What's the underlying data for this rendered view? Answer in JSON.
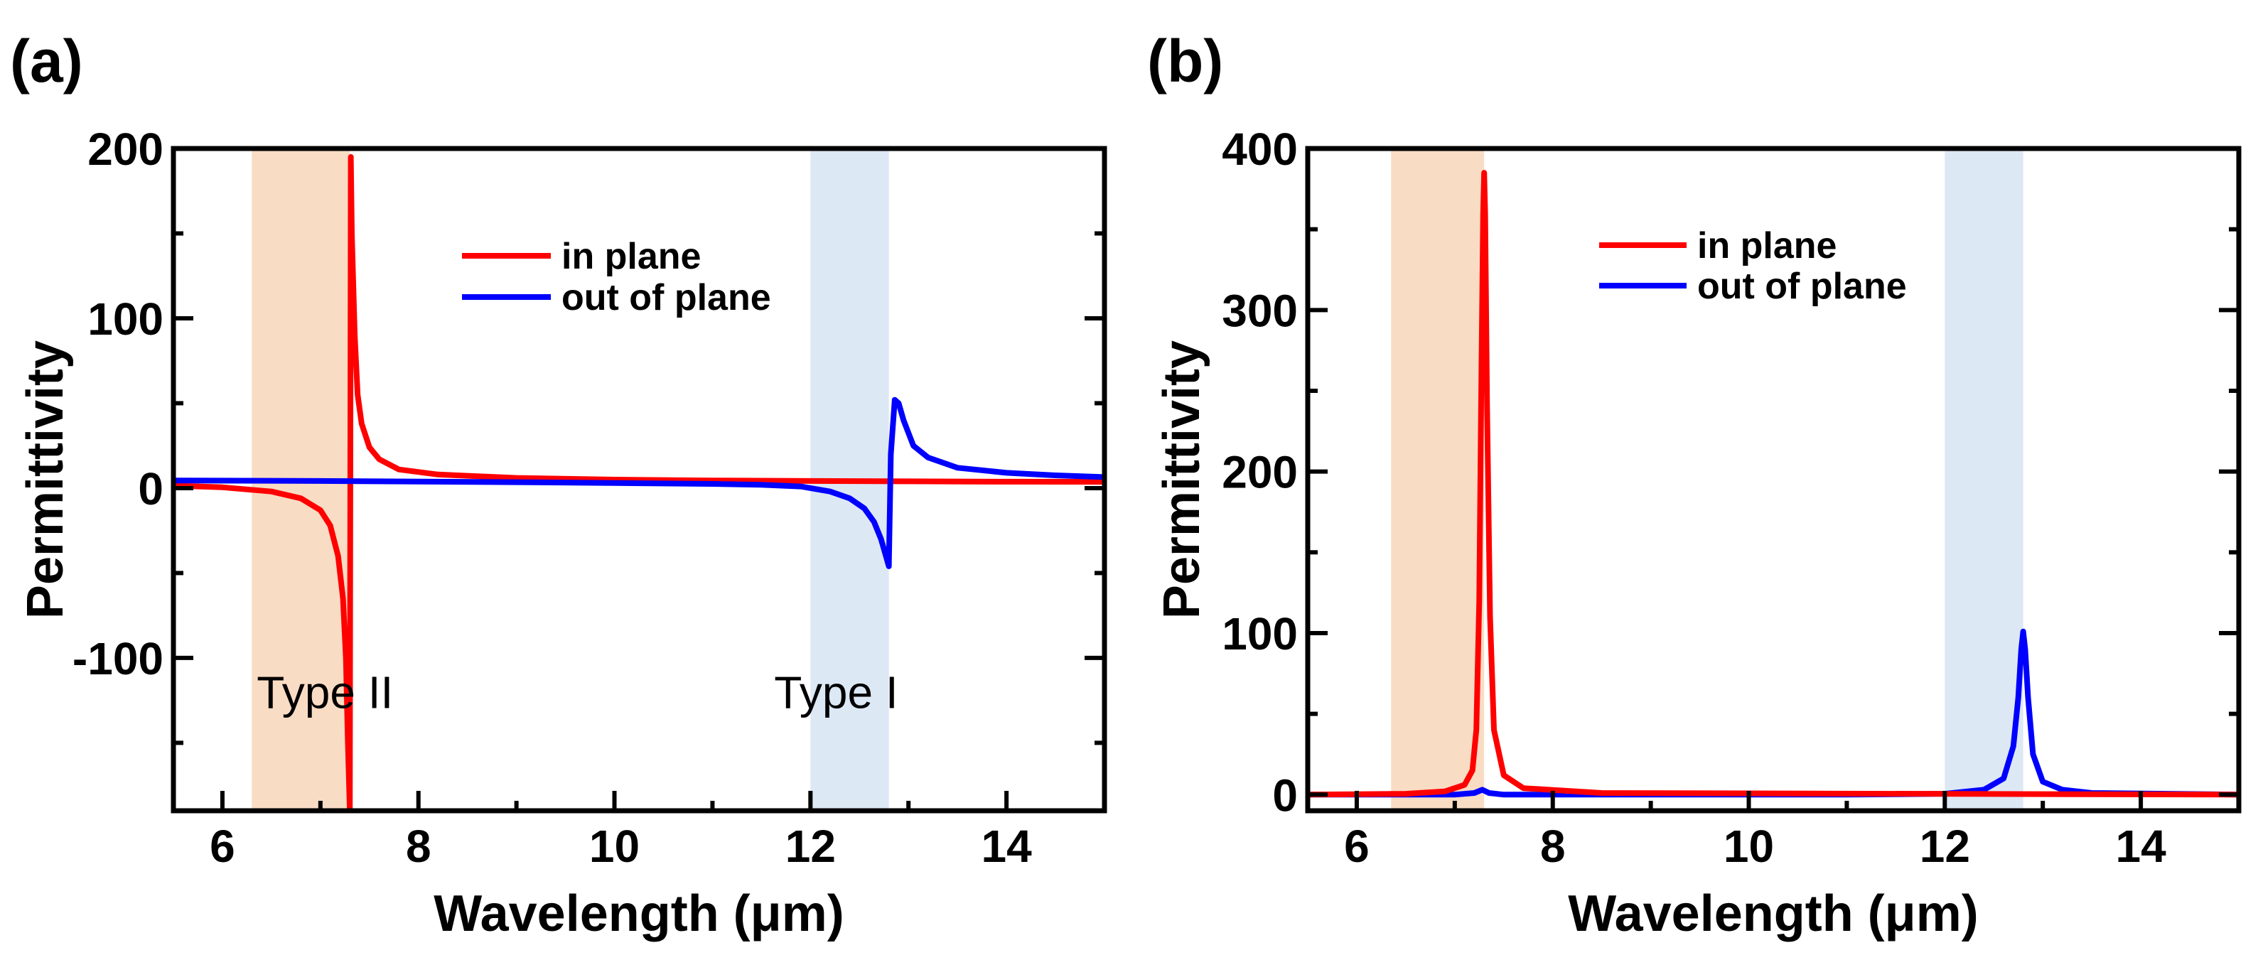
{
  "chart_data": [
    {
      "panel": "(a)",
      "type": "line",
      "xlabel": "Wavelength (μm)",
      "ylabel": "Permittivity",
      "xlim": [
        5.5,
        15
      ],
      "ylim": [
        -190,
        200
      ],
      "xticks": [
        6,
        8,
        10,
        12,
        14
      ],
      "yticks": [
        -100,
        0,
        100,
        200
      ],
      "yticklabels": [
        "-100",
        "0",
        "100",
        "200"
      ],
      "bands": [
        {
          "x0": 6.3,
          "x1": 7.3,
          "color": "#f9dcc4"
        },
        {
          "x0": 12.0,
          "x1": 12.8,
          "color": "#dde8f5"
        }
      ],
      "annotations": [
        {
          "text": "Type II",
          "x": 6.35,
          "y": -120
        },
        {
          "text": "Type I",
          "x": 11.63,
          "y": -120
        }
      ],
      "legend": {
        "position": "top-center"
      },
      "series": [
        {
          "name": "in plane",
          "color": "#ff0000",
          "x": [
            5.5,
            6.0,
            6.5,
            6.8,
            7.0,
            7.1,
            7.18,
            7.23,
            7.26,
            7.28,
            7.3,
            7.31,
            7.32,
            7.35,
            7.38,
            7.42,
            7.5,
            7.6,
            7.8,
            8.2,
            9.0,
            10.0,
            11.0,
            12.0,
            13.0,
            14.0,
            15.0
          ],
          "y": [
            1.5,
            0.5,
            -2,
            -6,
            -13,
            -22,
            -40,
            -65,
            -100,
            -150,
            -190,
            195,
            150,
            90,
            55,
            38,
            24,
            17,
            11,
            8,
            6,
            5,
            4.5,
            4.2,
            4,
            3.8,
            3.7
          ]
        },
        {
          "name": "out of plane",
          "color": "#0000ff",
          "x": [
            5.5,
            7.0,
            9.0,
            10.0,
            11.0,
            11.5,
            11.9,
            12.2,
            12.4,
            12.55,
            12.65,
            12.72,
            12.77,
            12.8,
            12.82,
            12.86,
            12.9,
            12.95,
            13.05,
            13.2,
            13.5,
            14.0,
            14.5,
            15.0
          ],
          "y": [
            4.5,
            4.2,
            3.5,
            3,
            2.5,
            2,
            1,
            -2,
            -6,
            -12,
            -20,
            -30,
            -40,
            -46,
            20,
            52,
            50,
            40,
            25,
            18,
            12,
            9,
            7.5,
            6.5
          ]
        }
      ]
    },
    {
      "panel": "(b)",
      "type": "line",
      "xlabel": "Wavelength (μm)",
      "ylabel": "Permittivity",
      "xlim": [
        5.5,
        15
      ],
      "ylim": [
        -10,
        400
      ],
      "xticks": [
        6,
        8,
        10,
        12,
        14
      ],
      "yticks": [
        0,
        100,
        200,
        300,
        400
      ],
      "yticklabels": [
        "0",
        "100",
        "200",
        "300",
        "400"
      ],
      "bands": [
        {
          "x0": 6.35,
          "x1": 7.3,
          "color": "#f9dcc4"
        },
        {
          "x0": 12.0,
          "x1": 12.8,
          "color": "#dde8f5"
        }
      ],
      "annotations": [],
      "legend": {
        "position": "top-center"
      },
      "series": [
        {
          "name": "out of plane",
          "color": "#0000ff",
          "x": [
            5.5,
            7.0,
            7.2,
            7.28,
            7.35,
            7.5,
            11.0,
            12.0,
            12.4,
            12.6,
            12.7,
            12.75,
            12.78,
            12.8,
            12.82,
            12.85,
            12.9,
            13.0,
            13.2,
            13.5,
            15.0
          ],
          "y": [
            0,
            0,
            1,
            3,
            1,
            0,
            0,
            0.5,
            3,
            10,
            30,
            60,
            90,
            101,
            90,
            60,
            25,
            8,
            3,
            1,
            0
          ]
        },
        {
          "name": "in plane",
          "color": "#ff0000",
          "x": [
            5.5,
            6.5,
            6.9,
            7.1,
            7.18,
            7.22,
            7.25,
            7.27,
            7.29,
            7.3,
            7.31,
            7.33,
            7.36,
            7.4,
            7.5,
            7.7,
            8.5,
            15.0
          ],
          "y": [
            0,
            0.5,
            2,
            6,
            15,
            40,
            120,
            250,
            360,
            385,
            360,
            240,
            110,
            40,
            12,
            4,
            1,
            0
          ]
        }
      ]
    }
  ]
}
